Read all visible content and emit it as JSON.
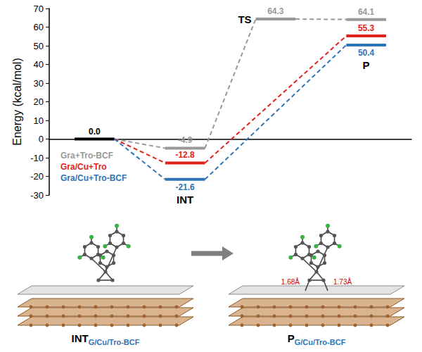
{
  "chart_data": {
    "type": "energy_profile",
    "y_label": "Energy (kcal/mol)",
    "categories": [
      null,
      "INT",
      "TS",
      "P"
    ],
    "series": [
      {
        "name": "Gra+Tro-BCF",
        "color": "#999999",
        "values": [
          0,
          -4.9,
          64.3,
          64.1
        ],
        "value_labels": [
          "0.0",
          "-4.9",
          "64.3",
          "64.1"
        ]
      },
      {
        "name": "Gra/Cu+Tro",
        "color": "#e3211c",
        "values": [
          0,
          -12.8,
          null,
          55.3
        ],
        "value_labels": [
          "0.0",
          "-12.8",
          null,
          "55.3"
        ]
      },
      {
        "name": "Gra/Cu+Tro-BCF",
        "color": "#2e75b6",
        "values": [
          0,
          -21.6,
          null,
          50.4
        ],
        "value_labels": [
          "0.0",
          "-21.6",
          null,
          "50.4"
        ]
      }
    ],
    "ylim": [
      -30,
      70
    ],
    "yticks": [
      -30,
      -20,
      -10,
      0,
      10,
      20,
      30,
      40,
      50,
      60,
      70
    ],
    "grid": false,
    "legend": "left",
    "data_labels": true,
    "tick_labels": "y",
    "line_style": "dashed"
  },
  "figure": {
    "panels": [
      {
        "label": "INT",
        "subscript": "G/Cu/Tro-BCF"
      },
      {
        "label": "P",
        "subscript": "G/Cu/Tro-BCF",
        "distances": [
          "1.68Å",
          "1.73Å"
        ]
      }
    ]
  }
}
